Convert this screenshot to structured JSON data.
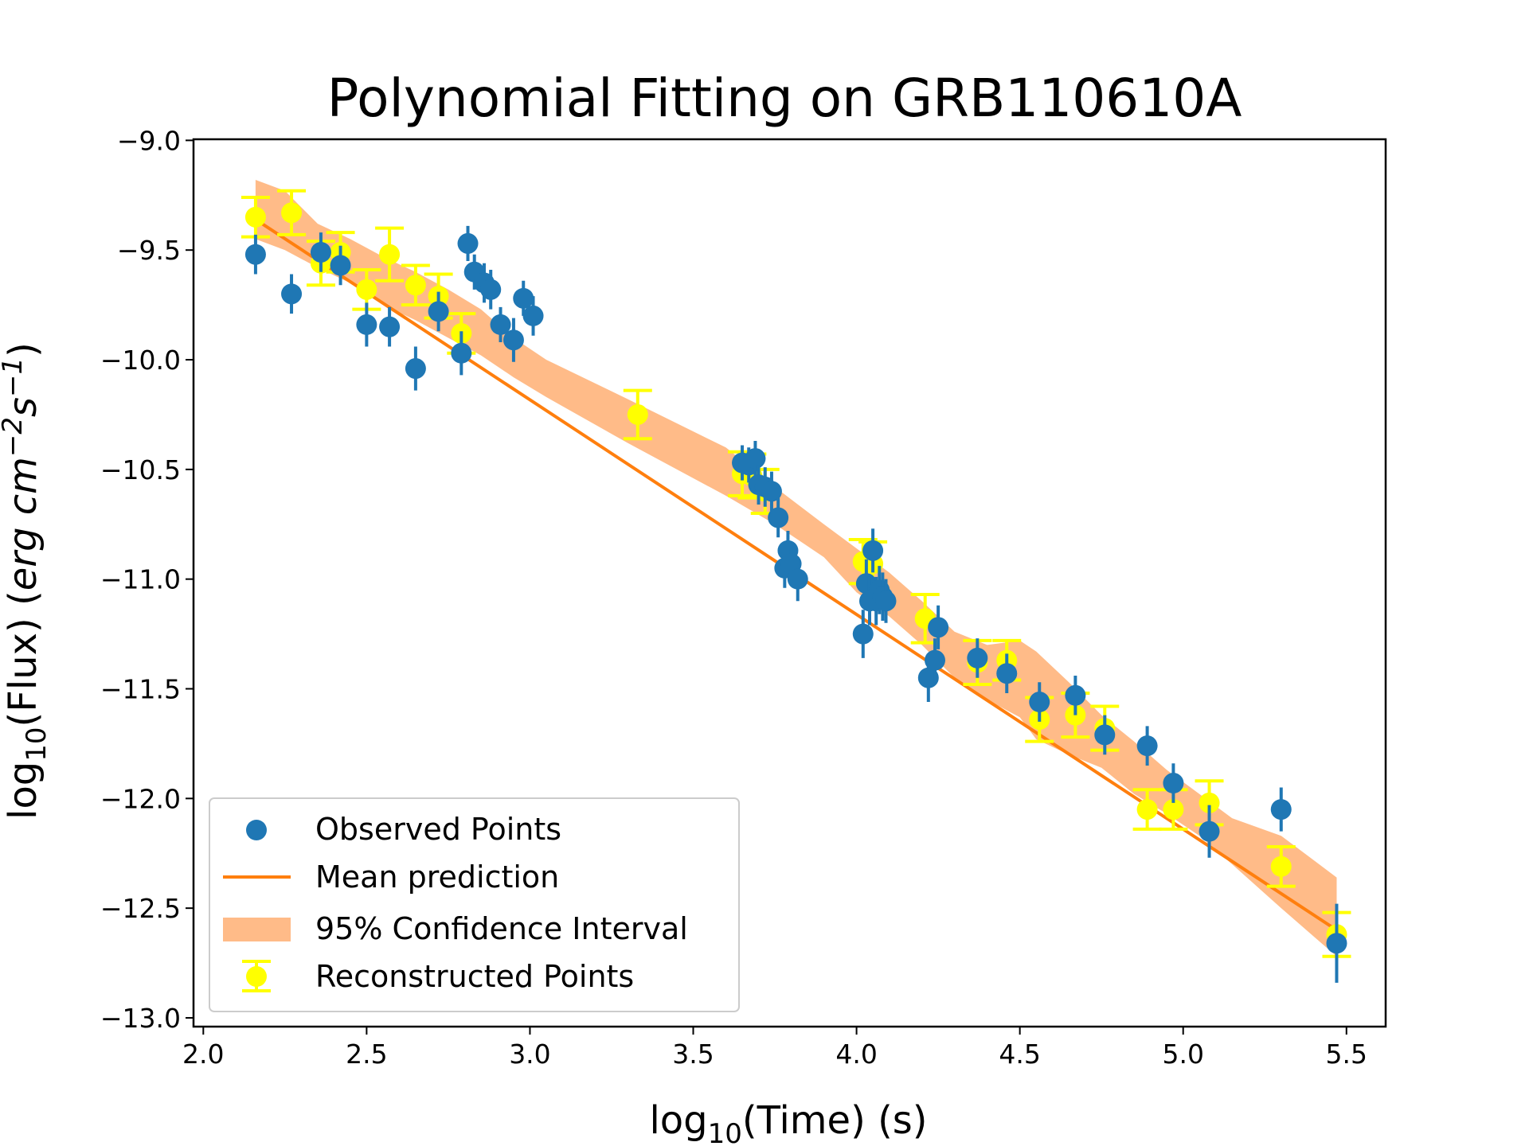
{
  "chart_data": {
    "type": "scatter",
    "title": "Polynomial Fitting on GRB110610A",
    "xlabel": {
      "prefix": "log",
      "sub": "10",
      "suffix": "(Time) (s)"
    },
    "ylabel": {
      "prefix": "log",
      "sub": "10",
      "middle": "(Flux) (",
      "unit": "erg cm",
      "exp1": "−2",
      "unit2": "s",
      "exp2": "−1",
      "suffix": ")"
    },
    "xlim": [
      1.97,
      5.62
    ],
    "ylim": [
      -13.04,
      -8.995
    ],
    "x_ticks": [
      2.0,
      2.5,
      3.0,
      3.5,
      4.0,
      4.5,
      5.0,
      5.5
    ],
    "x_tick_labels": [
      "2.0",
      "2.5",
      "3.0",
      "3.5",
      "4.0",
      "4.5",
      "5.0",
      "5.5"
    ],
    "y_ticks": [
      -9.0,
      -9.5,
      -10.0,
      -10.5,
      -11.0,
      -11.5,
      -12.0,
      -12.5,
      -13.0
    ],
    "y_tick_labels": [
      "−9.0",
      "−9.5",
      "−10.0",
      "−10.5",
      "−11.0",
      "−11.5",
      "−12.0",
      "−12.5",
      "−13.0"
    ],
    "legend": {
      "position": "lower-left",
      "entries": [
        "Observed Points",
        "Mean prediction",
        "95% Confidence Interval",
        "Reconstructed Points"
      ]
    },
    "colors": {
      "observed": "#1f77b4",
      "mean": "#ff7f0e",
      "band": "#ffbb88",
      "reconstructed": "#ffff00"
    },
    "mean_prediction": {
      "x": [
        2.17,
        5.47
      ],
      "y": [
        -9.37,
        -12.6
      ]
    },
    "confidence_band": {
      "x": [
        2.16,
        2.25,
        2.35,
        2.45,
        2.55,
        2.65,
        2.75,
        2.85,
        2.95,
        3.05,
        3.3,
        3.6,
        3.75,
        3.9,
        4.0,
        4.1,
        4.2,
        4.3,
        4.4,
        4.5,
        4.55,
        4.65,
        4.75,
        4.85,
        4.95,
        5.05,
        5.15,
        5.3,
        5.47
      ],
      "upper": [
        -9.18,
        -9.23,
        -9.38,
        -9.45,
        -9.53,
        -9.6,
        -9.68,
        -9.77,
        -9.9,
        -10.0,
        -10.18,
        -10.4,
        -10.58,
        -10.75,
        -10.86,
        -10.97,
        -11.1,
        -11.24,
        -11.3,
        -11.28,
        -11.33,
        -11.47,
        -11.62,
        -11.74,
        -11.87,
        -11.98,
        -12.09,
        -12.17,
        -12.36
      ],
      "lower": [
        -9.45,
        -9.5,
        -9.58,
        -9.65,
        -9.75,
        -9.82,
        -9.9,
        -9.98,
        -10.08,
        -10.17,
        -10.38,
        -10.62,
        -10.75,
        -10.9,
        -11.06,
        -11.17,
        -11.3,
        -11.45,
        -11.55,
        -11.63,
        -11.73,
        -11.8,
        -11.86,
        -11.98,
        -12.07,
        -12.17,
        -12.3,
        -12.5,
        -12.72
      ]
    },
    "observed": {
      "x": [
        2.16,
        2.27,
        2.36,
        2.42,
        2.5,
        2.57,
        2.65,
        2.72,
        2.79,
        2.81,
        2.83,
        2.86,
        2.88,
        2.91,
        2.95,
        2.98,
        3.01,
        3.65,
        3.67,
        3.69,
        3.7,
        3.72,
        3.74,
        3.76,
        3.78,
        3.79,
        3.8,
        3.82,
        4.02,
        4.03,
        4.04,
        4.05,
        4.06,
        4.07,
        4.08,
        4.09,
        4.22,
        4.24,
        4.25,
        4.37,
        4.46,
        4.56,
        4.67,
        4.76,
        4.89,
        4.97,
        5.08,
        5.3,
        5.47
      ],
      "y": [
        -9.52,
        -9.7,
        -9.51,
        -9.57,
        -9.84,
        -9.85,
        -10.04,
        -9.78,
        -9.97,
        -9.47,
        -9.6,
        -9.65,
        -9.68,
        -9.84,
        -9.91,
        -9.72,
        -9.8,
        -10.47,
        -10.48,
        -10.45,
        -10.57,
        -10.58,
        -10.6,
        -10.72,
        -10.95,
        -10.87,
        -10.93,
        -11.0,
        -11.25,
        -11.02,
        -11.1,
        -10.87,
        -11.1,
        -11.05,
        -11.08,
        -11.1,
        -11.45,
        -11.37,
        -11.22,
        -11.36,
        -11.43,
        -11.56,
        -11.53,
        -11.71,
        -11.76,
        -11.93,
        -12.15,
        -12.05,
        -12.66
      ],
      "yerr": [
        0.09,
        0.09,
        0.09,
        0.09,
        0.1,
        0.09,
        0.1,
        0.09,
        0.1,
        0.08,
        0.08,
        0.09,
        0.09,
        0.08,
        0.1,
        0.08,
        0.09,
        0.08,
        0.08,
        0.08,
        0.09,
        0.09,
        0.09,
        0.09,
        0.09,
        0.09,
        0.09,
        0.1,
        0.11,
        0.11,
        0.11,
        0.1,
        0.11,
        0.11,
        0.11,
        0.1,
        0.11,
        0.1,
        0.1,
        0.09,
        0.09,
        0.09,
        0.09,
        0.09,
        0.09,
        0.09,
        0.12,
        0.1,
        0.18
      ]
    },
    "reconstructed": {
      "x": [
        2.16,
        2.27,
        2.36,
        2.42,
        2.5,
        2.57,
        2.65,
        2.72,
        2.79,
        3.33,
        3.65,
        3.68,
        3.72,
        4.02,
        4.05,
        4.21,
        4.37,
        4.46,
        4.56,
        4.67,
        4.76,
        4.89,
        4.97,
        5.08,
        5.3,
        5.47
      ],
      "y": [
        -9.35,
        -9.33,
        -9.56,
        -9.51,
        -9.68,
        -9.52,
        -9.66,
        -9.71,
        -9.88,
        -10.25,
        -10.52,
        -10.53,
        -10.6,
        -10.92,
        -10.93,
        -11.18,
        -11.38,
        -11.37,
        -11.64,
        -11.62,
        -11.68,
        -12.05,
        -12.05,
        -12.02,
        -12.31,
        -12.62
      ],
      "yerr": [
        0.09,
        0.1,
        0.1,
        0.09,
        0.09,
        0.12,
        0.09,
        0.1,
        0.09,
        0.11,
        0.1,
        0.1,
        0.1,
        0.1,
        0.1,
        0.11,
        0.1,
        0.09,
        0.1,
        0.1,
        0.1,
        0.09,
        0.09,
        0.1,
        0.09,
        0.1
      ]
    }
  }
}
